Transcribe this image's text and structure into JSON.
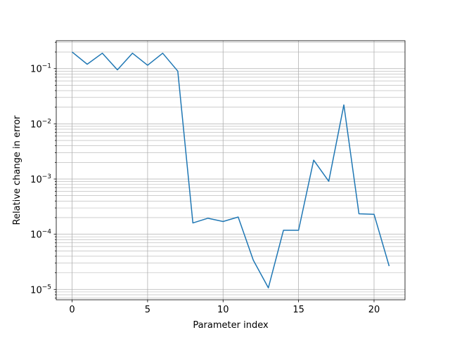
{
  "chart_data": {
    "type": "line",
    "xlabel": "Parameter index",
    "ylabel": "Relative change in error",
    "xlim": [
      -1.05,
      22.05
    ],
    "ylim": [
      6.5e-06,
      0.32
    ],
    "yscale": "log",
    "grid": "both (major and minor)",
    "legend": "none",
    "x_ticks": [
      0,
      5,
      10,
      15,
      20
    ],
    "x_tick_labels": [
      "0",
      "5",
      "10",
      "15",
      "20"
    ],
    "y_tick_labels": [
      {
        "base": "10",
        "exp": "−5",
        "value": 1e-05
      },
      {
        "base": "10",
        "exp": "−4",
        "value": 0.0001
      },
      {
        "base": "10",
        "exp": "−3",
        "value": 0.001
      },
      {
        "base": "10",
        "exp": "−2",
        "value": 0.01
      },
      {
        "base": "10",
        "exp": "−1",
        "value": 0.1
      }
    ],
    "series": [
      {
        "color": "#1f77b4",
        "x": [
          0,
          1,
          2,
          3,
          4,
          5,
          6,
          7,
          8,
          9,
          10,
          11,
          12,
          13,
          14,
          15,
          16,
          17,
          18,
          19,
          20,
          21
        ],
        "y": [
          0.2,
          0.12,
          0.19,
          0.095,
          0.19,
          0.115,
          0.19,
          0.09,
          0.00016,
          0.000195,
          0.00017,
          0.000205,
          3.4e-05,
          1.07e-05,
          0.000118,
          0.000118,
          0.0022,
          0.00091,
          0.022,
          0.000235,
          0.00023,
          2.65e-05
        ]
      }
    ]
  }
}
